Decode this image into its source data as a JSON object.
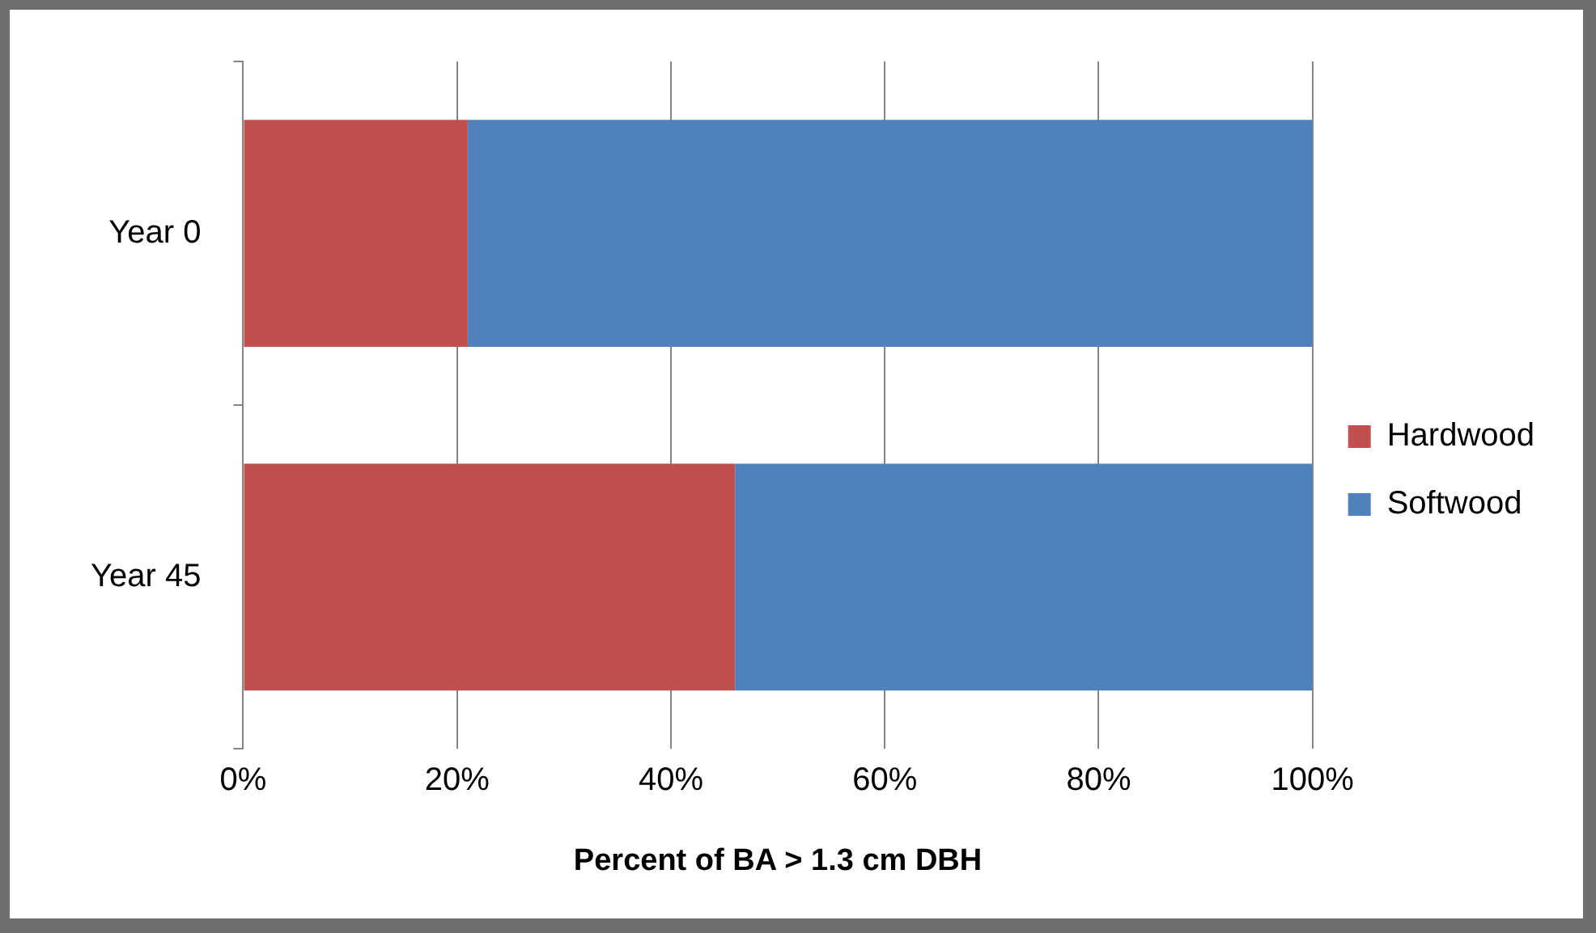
{
  "chart_data": {
    "type": "bar",
    "orientation": "horizontal",
    "stacked": true,
    "categories": [
      "Year 0",
      "Year 45"
    ],
    "series": [
      {
        "name": "Hardwood",
        "color": "#c0504d",
        "values": [
          21,
          46
        ]
      },
      {
        "name": "Softwood",
        "color": "#4f81bd",
        "values": [
          79,
          54
        ]
      }
    ],
    "xlabel": "Percent of BA > 1.3 cm DBH",
    "xlim": [
      0,
      100
    ],
    "xticks": [
      {
        "value": 0,
        "label": "0%"
      },
      {
        "value": 20,
        "label": "20%"
      },
      {
        "value": 40,
        "label": "40%"
      },
      {
        "value": 60,
        "label": "60%"
      },
      {
        "value": 80,
        "label": "80%"
      },
      {
        "value": 100,
        "label": "100%"
      }
    ],
    "grid": "x",
    "legend": "right"
  }
}
